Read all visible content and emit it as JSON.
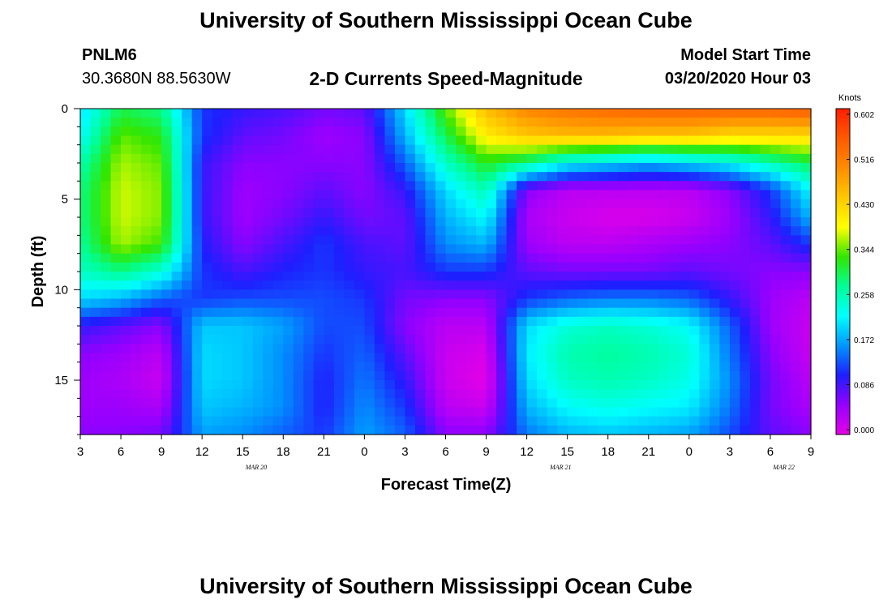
{
  "title": "University of Southern Mississippi Ocean Cube",
  "footer_title": "University of Southern Mississippi Ocean Cube",
  "station": {
    "id": "PNLM6",
    "coords": "30.3680N 88.5630W"
  },
  "model": {
    "label": "Model Start Time",
    "time": "03/20/2020 Hour 03"
  },
  "chart_data": {
    "type": "heatmap",
    "title": "2-D Currents Speed-Magnitude",
    "xlabel": "Forecast Time(Z)",
    "ylabel": "Depth (ft)",
    "x_ticks": [
      "3",
      "6",
      "9",
      "12",
      "15",
      "18",
      "21",
      "0",
      "3",
      "6",
      "9",
      "12",
      "15",
      "18",
      "21",
      "0",
      "3",
      "6",
      "9"
    ],
    "date_labels": [
      {
        "text": "MAR 20",
        "at_hour": 13
      },
      {
        "text": "MAR 21",
        "at_hour": 35.5
      },
      {
        "text": "MAR 22",
        "at_hour": 52
      }
    ],
    "x_range_hours": [
      0,
      54
    ],
    "y_ticks": [
      0,
      5,
      10,
      15
    ],
    "ylim": [
      18,
      0
    ],
    "colorbar": {
      "unit": "Knots",
      "ticks": [
        "0.602",
        "0.516",
        "0.430",
        "0.344",
        "0.258",
        "0.172",
        "0.086",
        "0.000"
      ],
      "min": 0.0,
      "max": 0.602,
      "colors": [
        "#e600e6",
        "#9600ff",
        "#1e1eff",
        "#0096ff",
        "#00ffff",
        "#00ff96",
        "#32e600",
        "#ffff00",
        "#ffc800",
        "#ff8c00",
        "#ff5a00",
        "#ff1e00"
      ]
    },
    "grid": false,
    "legend": "right",
    "hours": [
      0,
      3,
      6,
      9,
      12,
      15,
      18,
      21,
      24,
      27,
      30,
      33,
      36,
      39,
      42,
      45,
      48,
      51,
      54
    ],
    "depths": [
      0,
      1.5,
      3,
      4.5,
      6,
      7.5,
      9,
      10.5,
      12,
      13.5,
      15,
      16.5,
      18
    ],
    "values": [
      [
        0.2,
        0.3,
        0.28,
        0.12,
        0.1,
        0.09,
        0.07,
        0.08,
        0.2,
        0.34,
        0.45,
        0.5,
        0.52,
        0.53,
        0.54,
        0.54,
        0.54,
        0.54,
        0.55
      ],
      [
        0.22,
        0.34,
        0.32,
        0.12,
        0.08,
        0.07,
        0.05,
        0.06,
        0.18,
        0.3,
        0.4,
        0.44,
        0.45,
        0.45,
        0.44,
        0.44,
        0.42,
        0.42,
        0.42
      ],
      [
        0.26,
        0.36,
        0.34,
        0.1,
        0.06,
        0.06,
        0.06,
        0.06,
        0.14,
        0.25,
        0.32,
        0.28,
        0.22,
        0.2,
        0.18,
        0.2,
        0.22,
        0.26,
        0.3
      ],
      [
        0.28,
        0.37,
        0.35,
        0.1,
        0.05,
        0.06,
        0.08,
        0.06,
        0.1,
        0.2,
        0.26,
        0.06,
        0.03,
        0.03,
        0.03,
        0.03,
        0.06,
        0.12,
        0.22
      ],
      [
        0.28,
        0.37,
        0.35,
        0.1,
        0.05,
        0.07,
        0.1,
        0.07,
        0.08,
        0.18,
        0.22,
        0.04,
        0.02,
        0.01,
        0.01,
        0.02,
        0.05,
        0.1,
        0.18
      ],
      [
        0.27,
        0.36,
        0.33,
        0.11,
        0.06,
        0.09,
        0.12,
        0.09,
        0.08,
        0.16,
        0.18,
        0.05,
        0.03,
        0.03,
        0.04,
        0.05,
        0.06,
        0.08,
        0.12
      ],
      [
        0.25,
        0.28,
        0.24,
        0.12,
        0.09,
        0.11,
        0.12,
        0.1,
        0.09,
        0.12,
        0.12,
        0.08,
        0.07,
        0.07,
        0.07,
        0.08,
        0.07,
        0.06,
        0.06
      ],
      [
        0.2,
        0.18,
        0.14,
        0.12,
        0.13,
        0.13,
        0.13,
        0.12,
        0.07,
        0.06,
        0.06,
        0.12,
        0.14,
        0.15,
        0.15,
        0.14,
        0.1,
        0.05,
        0.03
      ],
      [
        0.1,
        0.08,
        0.06,
        0.19,
        0.19,
        0.17,
        0.13,
        0.13,
        0.06,
        0.03,
        0.03,
        0.2,
        0.24,
        0.25,
        0.24,
        0.22,
        0.14,
        0.05,
        0.02
      ],
      [
        0.06,
        0.05,
        0.03,
        0.2,
        0.19,
        0.16,
        0.12,
        0.14,
        0.08,
        0.02,
        0.01,
        0.21,
        0.26,
        0.27,
        0.26,
        0.24,
        0.15,
        0.06,
        0.02
      ],
      [
        0.05,
        0.04,
        0.02,
        0.2,
        0.19,
        0.16,
        0.11,
        0.15,
        0.1,
        0.02,
        0.0,
        0.2,
        0.25,
        0.26,
        0.25,
        0.23,
        0.16,
        0.07,
        0.03
      ],
      [
        0.05,
        0.05,
        0.04,
        0.19,
        0.18,
        0.16,
        0.11,
        0.16,
        0.12,
        0.03,
        0.02,
        0.18,
        0.22,
        0.23,
        0.22,
        0.21,
        0.15,
        0.07,
        0.04
      ],
      [
        0.06,
        0.06,
        0.07,
        0.17,
        0.16,
        0.14,
        0.12,
        0.17,
        0.14,
        0.06,
        0.06,
        0.15,
        0.18,
        0.19,
        0.18,
        0.17,
        0.13,
        0.08,
        0.06
      ]
    ]
  }
}
